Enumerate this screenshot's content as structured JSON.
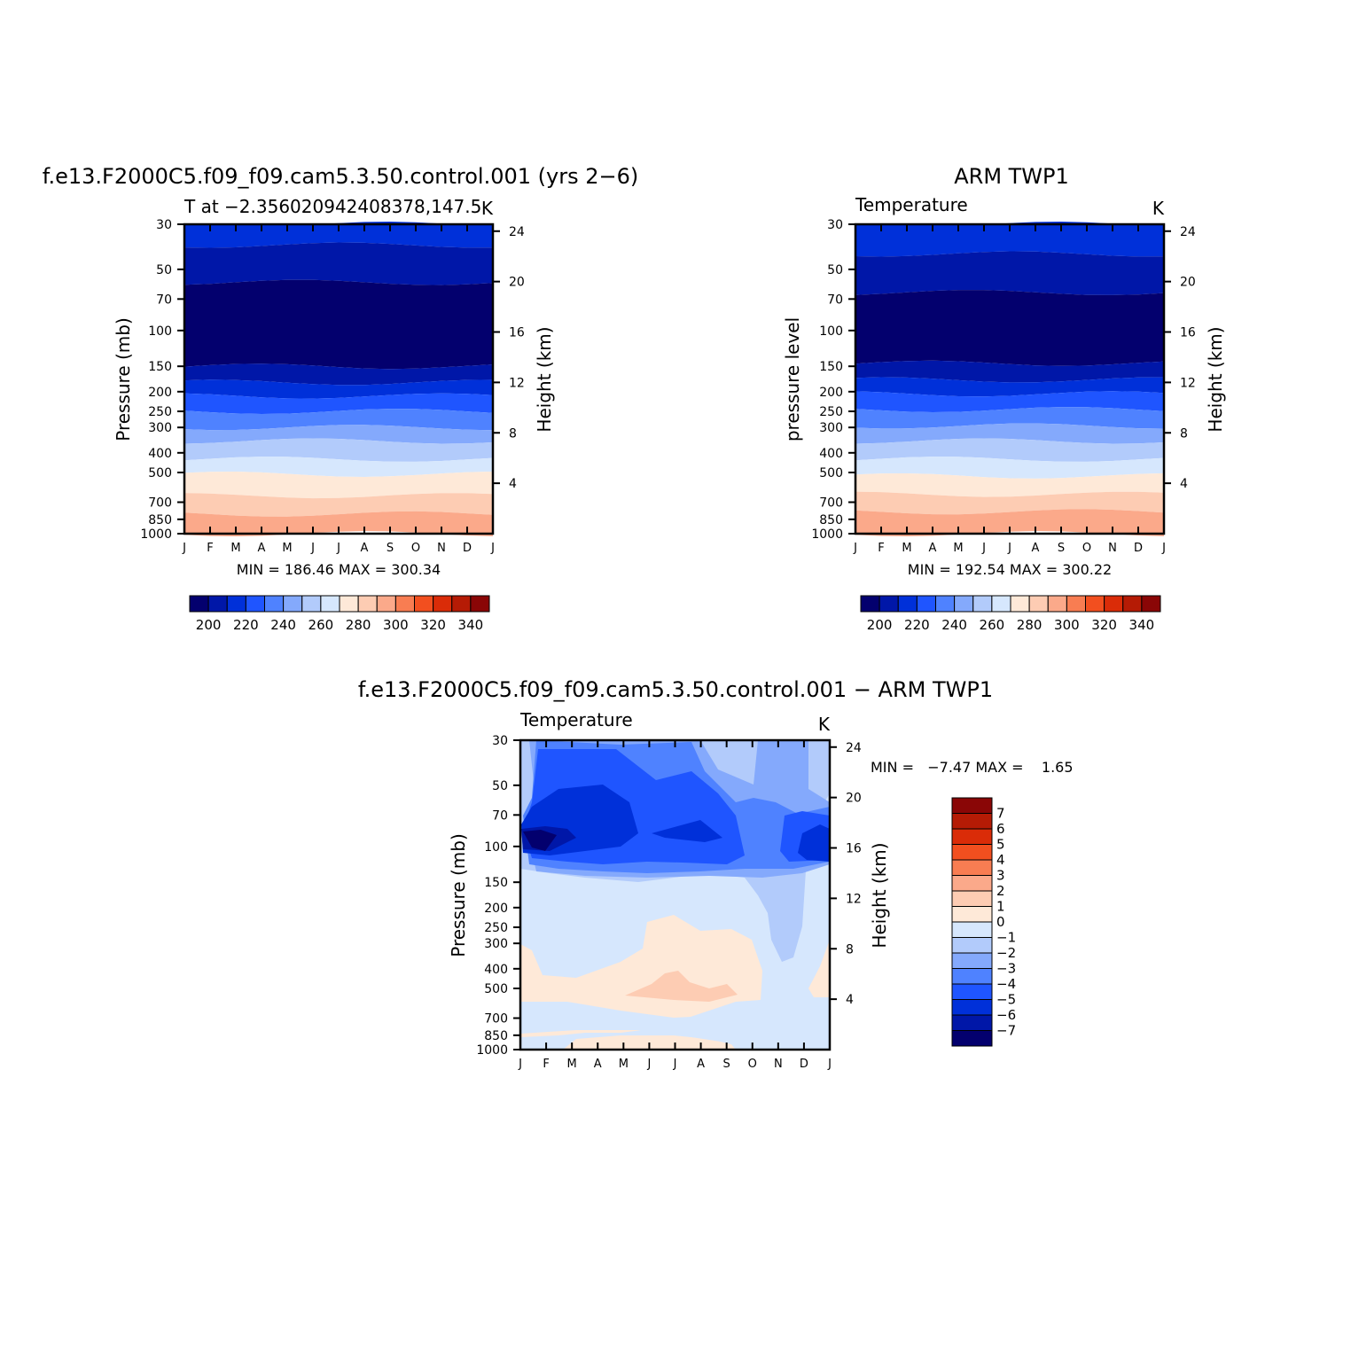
{
  "figure": {
    "months": [
      "J",
      "F",
      "M",
      "A",
      "M",
      "J",
      "J",
      "A",
      "S",
      "O",
      "N",
      "D",
      "J"
    ]
  },
  "chart_data": [
    {
      "type": "heatmap",
      "title": "f.e13.F2000C5.f09_f09.cam5.3.50.control.001 (yrs 2−6)",
      "subtitle_left": "T at −2.356020942408378,147.5",
      "subtitle_right": "K",
      "ylabel": "Pressure (mb)",
      "y2label": "Height (km)",
      "stats": "MIN = 186.46 MAX = 300.34",
      "x_ticks": [
        "J",
        "F",
        "M",
        "A",
        "M",
        "J",
        "J",
        "A",
        "S",
        "O",
        "N",
        "D",
        "J"
      ],
      "y_ticks": [
        "30",
        "50",
        "70",
        "100",
        "150",
        "200",
        "250",
        "300",
        "400",
        "500",
        "700",
        "850",
        "1000"
      ],
      "y2_ticks": [
        "24",
        "20",
        "16",
        "12",
        "8",
        "4"
      ],
      "colorbar_labels": [
        "200",
        "220",
        "240",
        "260",
        "280",
        "300",
        "320",
        "340"
      ],
      "colorbar_colors": [
        "#03006e",
        "#0017a8",
        "#0030d9",
        "#1f55ff",
        "#4f82ff",
        "#84a9fc",
        "#b2cbfb",
        "#d6e7fd",
        "#fee9d8",
        "#fdccb3",
        "#fba98a",
        "#f87d52",
        "#f24f1f",
        "#da2c08",
        "#b51b05",
        "#8a0606"
      ],
      "bands": [
        {
          "top": "30",
          "bottom": "38",
          "color": "#0030d9"
        },
        {
          "top": "38",
          "bottom": "58",
          "color": "#0017a8"
        },
        {
          "top": "58",
          "bottom": "150",
          "color": "#03006e"
        },
        {
          "top": "150",
          "bottom": "180",
          "color": "#0017a8"
        },
        {
          "top": "180",
          "bottom": "210",
          "color": "#0030d9"
        },
        {
          "top": "210",
          "bottom": "250",
          "color": "#1f55ff"
        },
        {
          "top": "250",
          "bottom": "300",
          "color": "#4f82ff"
        },
        {
          "top": "300",
          "bottom": "350",
          "color": "#84a9fc"
        },
        {
          "top": "350",
          "bottom": "430",
          "color": "#b2cbfb"
        },
        {
          "top": "430",
          "bottom": "510",
          "color": "#d6e7fd"
        },
        {
          "top": "510",
          "bottom": "650",
          "color": "#fee9d8"
        },
        {
          "top": "650",
          "bottom": "800",
          "color": "#fdccb3"
        },
        {
          "top": "800",
          "bottom": "1000",
          "color": "#fba98a"
        }
      ],
      "colors": {
        "model_top": "#0030d9"
      }
    },
    {
      "type": "heatmap",
      "title": "ARM TWP1",
      "subtitle_left": "Temperature",
      "subtitle_right": "K",
      "ylabel": "pressure level",
      "y2label": "Height (km)",
      "stats": "MIN = 192.54 MAX = 300.22",
      "x_ticks": [
        "J",
        "F",
        "M",
        "A",
        "M",
        "J",
        "J",
        "A",
        "S",
        "O",
        "N",
        "D",
        "J"
      ],
      "y_ticks": [
        "30",
        "50",
        "70",
        "100",
        "150",
        "200",
        "250",
        "300",
        "400",
        "500",
        "700",
        "850",
        "1000"
      ],
      "y2_ticks": [
        "24",
        "20",
        "16",
        "12",
        "8",
        "4"
      ],
      "colorbar_labels": [
        "200",
        "220",
        "240",
        "260",
        "280",
        "300",
        "320",
        "340"
      ],
      "colorbar_colors": [
        "#03006e",
        "#0017a8",
        "#0030d9",
        "#1f55ff",
        "#4f82ff",
        "#84a9fc",
        "#b2cbfb",
        "#d6e7fd",
        "#fee9d8",
        "#fdccb3",
        "#fba98a",
        "#f87d52",
        "#f24f1f",
        "#da2c08",
        "#b51b05",
        "#8a0606"
      ],
      "bands": [
        {
          "top": "30",
          "bottom": "42",
          "color": "#0030d9"
        },
        {
          "top": "42",
          "bottom": "65",
          "color": "#0017a8"
        },
        {
          "top": "65",
          "bottom": "145",
          "color": "#03006e"
        },
        {
          "top": "145",
          "bottom": "175",
          "color": "#0017a8"
        },
        {
          "top": "175",
          "bottom": "205",
          "color": "#0030d9"
        },
        {
          "top": "205",
          "bottom": "245",
          "color": "#1f55ff"
        },
        {
          "top": "245",
          "bottom": "295",
          "color": "#4f82ff"
        },
        {
          "top": "295",
          "bottom": "350",
          "color": "#84a9fc"
        },
        {
          "top": "350",
          "bottom": "430",
          "color": "#b2cbfb"
        },
        {
          "top": "430",
          "bottom": "520",
          "color": "#d6e7fd"
        },
        {
          "top": "520",
          "bottom": "640",
          "color": "#fee9d8"
        },
        {
          "top": "640",
          "bottom": "780",
          "color": "#fdccb3"
        },
        {
          "top": "780",
          "bottom": "1000",
          "color": "#fba98a"
        }
      ]
    },
    {
      "type": "heatmap",
      "title": "f.e13.F2000C5.f09_f09.cam5.3.50.control.001 − ARM TWP1",
      "subtitle_left": "Temperature",
      "subtitle_right": "K",
      "ylabel": "Pressure (mb)",
      "y2label": "Height (km)",
      "stats": "MIN =   −7.47 MAX =    1.65",
      "x_ticks": [
        "J",
        "F",
        "M",
        "A",
        "M",
        "J",
        "J",
        "A",
        "S",
        "O",
        "N",
        "D",
        "J"
      ],
      "y_ticks": [
        "30",
        "50",
        "70",
        "100",
        "150",
        "200",
        "250",
        "300",
        "400",
        "500",
        "700",
        "850",
        "1000"
      ],
      "y2_ticks": [
        "24",
        "20",
        "16",
        "12",
        "8",
        "4"
      ],
      "colorbar_labels": [
        "7",
        "6",
        "5",
        "4",
        "3",
        "2",
        "1",
        "0",
        "−1",
        "−2",
        "−3",
        "−4",
        "−5",
        "−6",
        "−7"
      ],
      "colorbar_colors": [
        "#8a0606",
        "#b51b05",
        "#da2c08",
        "#f24f1f",
        "#f87d52",
        "#fba98a",
        "#fdccb3",
        "#fee9d8",
        "#d6e7fd",
        "#b2cbfb",
        "#84a9fc",
        "#4f82ff",
        "#1f55ff",
        "#0030d9",
        "#0017a8",
        "#03006e"
      ],
      "regions": [
        {
          "level": "-1",
          "color": "#d6e7fd"
        },
        {
          "level": "-2",
          "color": "#b2cbfb"
        },
        {
          "level": "-3",
          "color": "#84a9fc"
        },
        {
          "level": "-4",
          "color": "#4f82ff"
        },
        {
          "level": "-5",
          "color": "#1f55ff"
        },
        {
          "level": "-6",
          "color": "#0030d9"
        },
        {
          "level": "-7",
          "color": "#0017a8"
        },
        {
          "level": "-8",
          "color": "#03006e"
        },
        {
          "level": "1",
          "color": "#fee9d8"
        },
        {
          "level": "2",
          "color": "#fdccb3"
        }
      ]
    }
  ]
}
